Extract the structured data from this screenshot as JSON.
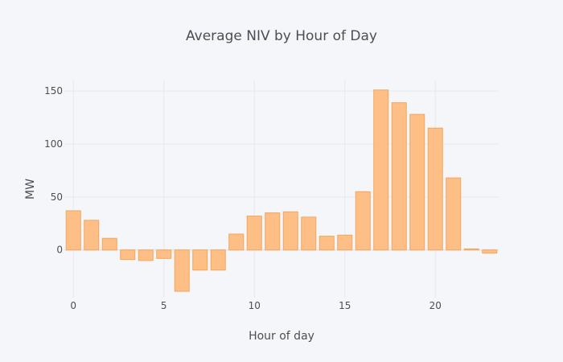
{
  "chart_data": {
    "type": "bar",
    "title": "Average NIV by Hour of Day",
    "xlabel": "Hour of day",
    "ylabel": "MW",
    "x": [
      0,
      1,
      2,
      3,
      4,
      5,
      6,
      7,
      8,
      9,
      10,
      11,
      12,
      13,
      14,
      15,
      16,
      17,
      18,
      19,
      20,
      21,
      22,
      23
    ],
    "values": [
      37,
      28,
      11,
      -9,
      -10,
      -8,
      -39,
      -19,
      -19,
      15,
      32,
      35,
      36,
      31,
      13,
      14,
      55,
      151,
      139,
      128,
      115,
      68,
      1,
      -3
    ],
    "xlim": [
      -0.5,
      23.5
    ],
    "ylim": [
      -45,
      160
    ],
    "xticks": [
      0,
      5,
      10,
      15,
      20
    ],
    "yticks": [
      0,
      50,
      100,
      150
    ],
    "grid": true,
    "bar_color": "#fdbf86",
    "bar_edge_color": "#f4a55c",
    "background": "#f5f6fa"
  }
}
